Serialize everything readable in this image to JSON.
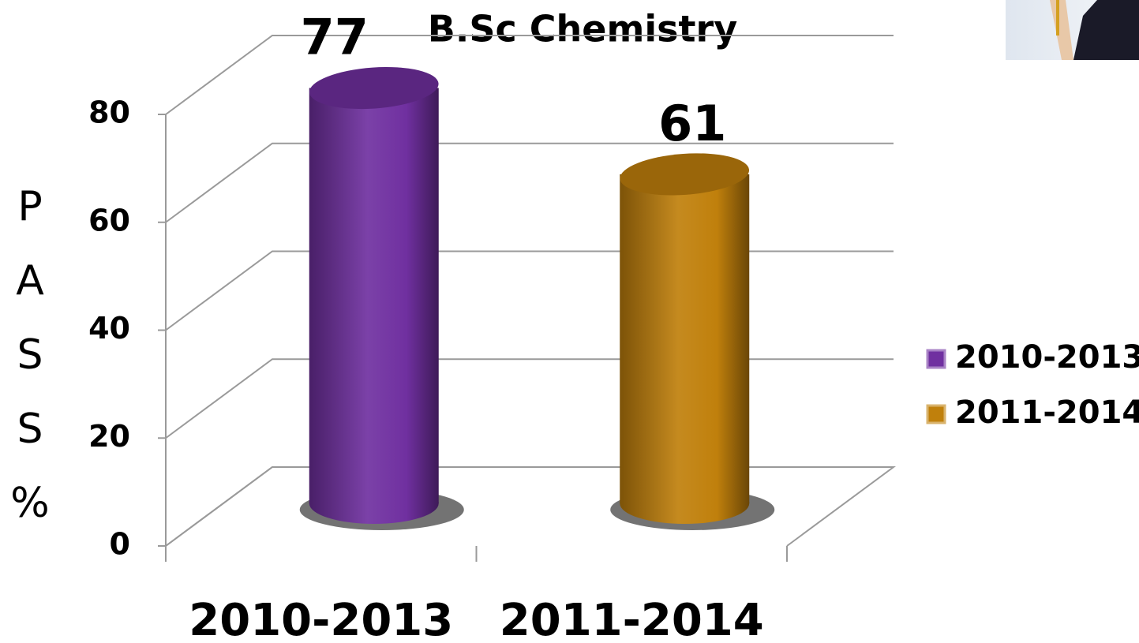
{
  "chart_data": {
    "type": "bar3d",
    "title": "B.Sc Chemistry",
    "y_label": "PASS%",
    "categories": [
      "2010-2013",
      "2011-2014"
    ],
    "series": [
      {
        "name": "2010-2013",
        "color": "#7030a0",
        "values": [
          77,
          null
        ]
      },
      {
        "name": "2011-2014",
        "color": "#c0800c",
        "values": [
          null,
          61
        ]
      }
    ],
    "ylim": [
      0,
      80
    ],
    "yticks": [
      0,
      20,
      40,
      60,
      80
    ],
    "grid": true,
    "legend": "right"
  }
}
